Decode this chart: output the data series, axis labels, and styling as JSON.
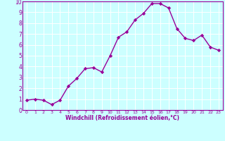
{
  "x": [
    0,
    1,
    2,
    3,
    4,
    5,
    6,
    7,
    8,
    9,
    10,
    11,
    12,
    13,
    14,
    15,
    16,
    17,
    18,
    19,
    20,
    21,
    22,
    23
  ],
  "y": [
    0.9,
    1.0,
    0.9,
    0.5,
    0.9,
    2.2,
    2.9,
    3.8,
    3.9,
    3.5,
    5.0,
    6.7,
    7.2,
    8.3,
    8.9,
    9.8,
    9.8,
    9.4,
    7.5,
    6.6,
    6.4,
    6.9,
    5.8,
    5.5
  ],
  "line_color": "#990099",
  "marker": "D",
  "marker_size": 2.2,
  "bg_color": "#ccffff",
  "grid_color": "#ffffff",
  "xlabel": "Windchill (Refroidissement éolien,°C)",
  "xlim": [
    -0.5,
    23.5
  ],
  "ylim": [
    0,
    10
  ],
  "xticks": [
    0,
    1,
    2,
    3,
    4,
    5,
    6,
    7,
    8,
    9,
    10,
    11,
    12,
    13,
    14,
    15,
    16,
    17,
    18,
    19,
    20,
    21,
    22,
    23
  ],
  "yticks": [
    0,
    1,
    2,
    3,
    4,
    5,
    6,
    7,
    8,
    9,
    10
  ],
  "xlabel_color": "#990099",
  "tick_color": "#990099",
  "spine_color": "#990099",
  "linewidth": 1.0
}
